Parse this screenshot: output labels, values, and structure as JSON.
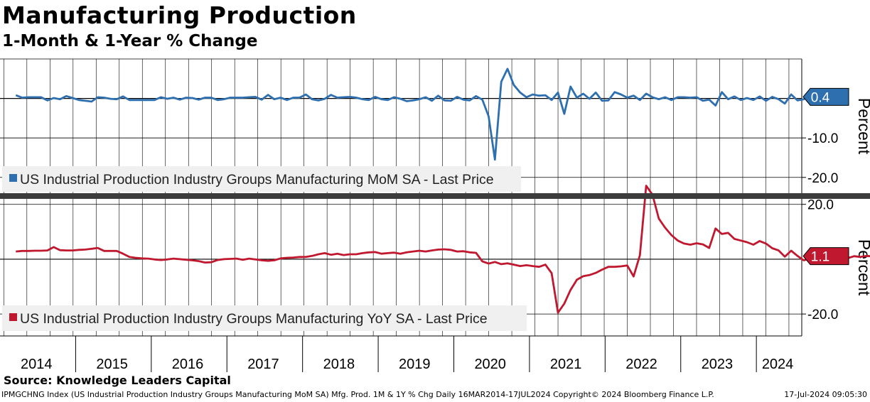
{
  "title": "Manufacturing Production",
  "subtitle": "1-Month & 1-Year % Change",
  "source": "Source: Knowledge Leaders Capital",
  "footer": {
    "left": "IPMGCHNG Index (US Industrial Production Industry Groups Manufacturing MoM SA) Mfg. Prod. 1M & 1Y % Chg  Daily 16MAR2014-17JUL2024  Copyright© 2024 Bloomberg Finance L.P.",
    "right": "17-Jul-2024 09:05:30"
  },
  "colors": {
    "mom": "#2e6fb0",
    "yoy": "#c0182f",
    "legend_bg": "#f0f0f0",
    "divider": "#3c3c3c"
  },
  "chart_data": [
    {
      "type": "line",
      "series": [
        {
          "name": "US Industrial Production Industry Groups Manufacturing MoM SA - Last Price"
        }
      ],
      "ylabel": "Percent",
      "y_tick_labels": [
        "-10.0",
        "-20.0"
      ],
      "ylim": [
        -24,
        10
      ],
      "last_value_label": "0.4",
      "x_tick_labels": [
        "2014",
        "2015",
        "2016",
        "2017",
        "2018",
        "2019",
        "2020",
        "2021",
        "2022",
        "2023",
        "2024"
      ],
      "x_start": 2014.21,
      "x_step": 0.0833333,
      "values": [
        0.8,
        0.2,
        0.3,
        0.3,
        0.3,
        -0.5,
        0.1,
        -0.2,
        0.6,
        0.1,
        -0.4,
        -0.6,
        -0.8,
        0.3,
        0.2,
        -0.1,
        -0.2,
        0.5,
        -0.4,
        -0.4,
        -0.4,
        -0.4,
        -0.4,
        0.3,
        -0.1,
        0.2,
        -0.3,
        0.2,
        0.1,
        -0.3,
        0.2,
        0.2,
        -0.4,
        -0.2,
        0.2,
        0.2,
        0.2,
        0.3,
        0.4,
        -0.3,
        0.9,
        -0.2,
        0.2,
        -0.4,
        0.2,
        0.2,
        1.0,
        -0.2,
        -0.5,
        -0.1,
        0.9,
        0.2,
        0.3,
        0.4,
        0.2,
        -0.2,
        -0.4,
        0.4,
        -0.2,
        -0.4,
        0.3,
        -0.1,
        -0.7,
        -0.5,
        -0.2,
        0.3,
        -0.6,
        0.7,
        -0.5,
        -0.6,
        0.4,
        -0.3,
        -0.5,
        0.6,
        -0.3,
        -4.5,
        -15.5,
        4.2,
        7.5,
        3.4,
        1.5,
        0.3,
        1.0,
        0.7,
        0.8,
        -0.4,
        1.5,
        -3.9,
        3.0,
        0.2,
        1.2,
        -0.1,
        1.5,
        -0.6,
        -0.5,
        1.6,
        1.0,
        0.2,
        0.7,
        -0.4,
        1.2,
        0.3,
        -0.2,
        0.3,
        -0.4,
        0.3,
        0.3,
        0.2,
        0.3,
        -0.6,
        -0.3,
        -1.8,
        1.6,
        -0.2,
        0.5,
        -0.4,
        0.1,
        -0.4,
        0.5,
        -0.6,
        0.4,
        -0.2,
        -1.3,
        1.0,
        -0.5,
        -0.2,
        1.2,
        0.4
      ],
      "legend_pos": "bottom-left"
    },
    {
      "type": "line",
      "series": [
        {
          "name": "US Industrial Production Industry Groups Manufacturing YoY SA - Last Price"
        }
      ],
      "ylabel": "Percent",
      "y_tick_labels": [
        "20.0",
        "-20.0"
      ],
      "ylim": [
        -28,
        22
      ],
      "last_value_label": "1.1",
      "x_tick_labels": [
        "2014",
        "2015",
        "2016",
        "2017",
        "2018",
        "2019",
        "2020",
        "2021",
        "2022",
        "2023",
        "2024"
      ],
      "x_start": 2014.21,
      "x_step": 0.0833333,
      "values": [
        2.8,
        3.0,
        3.0,
        3.1,
        3.1,
        3.2,
        4.4,
        3.3,
        3.2,
        3.2,
        3.4,
        3.5,
        3.8,
        4.1,
        3.0,
        3.0,
        3.0,
        2.0,
        0.8,
        0.5,
        0.3,
        0.2,
        -0.1,
        -0.3,
        -0.1,
        0.2,
        0.0,
        -0.2,
        -0.4,
        -0.7,
        -1.2,
        -1.1,
        -0.3,
        0.0,
        0.1,
        0.2,
        -0.2,
        0.2,
        -0.1,
        -0.4,
        -0.6,
        -0.4,
        0.3,
        0.5,
        0.6,
        0.8,
        0.8,
        1.2,
        1.8,
        2.2,
        1.6,
        2.0,
        1.5,
        1.8,
        1.8,
        2.2,
        2.5,
        2.6,
        2.0,
        2.2,
        2.4,
        2.0,
        2.5,
        2.8,
        3.1,
        2.8,
        3.2,
        3.5,
        3.6,
        3.4,
        2.8,
        2.9,
        2.5,
        2.3,
        -0.8,
        -1.6,
        -1.0,
        -1.8,
        -1.5,
        -2.0,
        -2.5,
        -2.2,
        -2.5,
        -2.8,
        -2.0,
        -5.1,
        -19.5,
        -16.2,
        -11.2,
        -7.5,
        -6.2,
        -5.8,
        -5.0,
        -3.8,
        -2.8,
        -2.8,
        -2.6,
        -2.3,
        -6.3,
        1.5,
        26.8,
        23.5,
        14.8,
        11.5,
        8.8,
        6.8,
        5.7,
        5.3,
        5.8,
        5.4,
        4.1,
        11.2,
        9.2,
        9.6,
        7.4,
        6.8,
        6.2,
        5.3,
        6.6,
        5.7,
        4.0,
        3.2,
        0.9,
        3.1,
        1.2,
        -0.4,
        0.3,
        0.9,
        0.5,
        1.1,
        1.2,
        1.2,
        0.4,
        1.1,
        0.8,
        1.2,
        1.0,
        1.0,
        0.5,
        -0.3,
        0.9,
        1.5,
        -0.5,
        3.3,
        -1.5,
        0.1,
        1.2,
        -0.8,
        0.9,
        1.1
      ],
      "legend_pos": "bottom-left"
    }
  ]
}
